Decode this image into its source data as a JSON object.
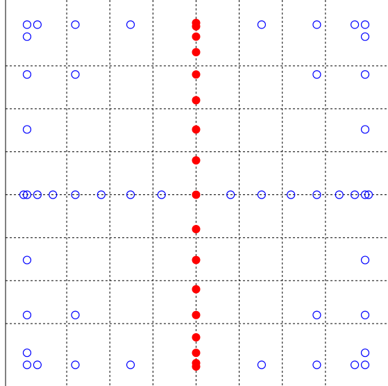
{
  "chart_data": {
    "type": "scatter",
    "title": "",
    "xlabel": "",
    "ylabel": "",
    "xlim": [
      -1,
      1
    ],
    "ylim": [
      -1,
      1
    ],
    "grid": true,
    "grid_style": "dashed",
    "x_gridlines": [
      -0.75,
      -0.5,
      -0.25,
      0,
      0.25,
      0.5,
      0.75
    ],
    "y_gridlines": [
      -0.75,
      -0.5,
      -0.25,
      0,
      0.25,
      0.5,
      0.75
    ],
    "series": [
      {
        "marker": "open-circle",
        "color": "#0000ff",
        "points": [
          [
            -0.98,
            0.99
          ],
          [
            -0.92,
            0.99
          ],
          [
            -0.7,
            0.99
          ],
          [
            -0.38,
            0.99
          ],
          [
            0.38,
            0.99
          ],
          [
            0.7,
            0.99
          ],
          [
            0.92,
            0.99
          ],
          [
            0.98,
            0.99
          ],
          [
            -0.98,
            0.92
          ],
          [
            0.98,
            0.92
          ],
          [
            -0.98,
            0.7
          ],
          [
            -0.7,
            0.7
          ],
          [
            0.7,
            0.7
          ],
          [
            0.98,
            0.7
          ],
          [
            -0.98,
            0.38
          ],
          [
            0.98,
            0.38
          ],
          [
            -1.0,
            0.0
          ],
          [
            -0.98,
            0.0
          ],
          [
            -0.92,
            0.0
          ],
          [
            -0.83,
            0.0
          ],
          [
            -0.7,
            0.0
          ],
          [
            -0.55,
            0.0
          ],
          [
            -0.38,
            0.0
          ],
          [
            -0.2,
            0.0
          ],
          [
            0.2,
            0.0
          ],
          [
            0.38,
            0.0
          ],
          [
            0.55,
            0.0
          ],
          [
            0.7,
            0.0
          ],
          [
            0.83,
            0.0
          ],
          [
            0.92,
            0.0
          ],
          [
            0.98,
            0.0
          ],
          [
            1.0,
            0.0
          ],
          [
            -0.98,
            -0.38
          ],
          [
            0.98,
            -0.38
          ],
          [
            -0.98,
            -0.7
          ],
          [
            -0.7,
            -0.7
          ],
          [
            0.7,
            -0.7
          ],
          [
            0.98,
            -0.7
          ],
          [
            -0.98,
            -0.92
          ],
          [
            0.98,
            -0.92
          ],
          [
            -0.98,
            -0.99
          ],
          [
            -0.92,
            -0.99
          ],
          [
            -0.7,
            -0.99
          ],
          [
            -0.38,
            -0.99
          ],
          [
            0.38,
            -0.99
          ],
          [
            0.7,
            -0.99
          ],
          [
            0.92,
            -0.99
          ],
          [
            0.98,
            -0.99
          ]
        ]
      },
      {
        "marker": "filled-circle",
        "color": "#ff0000",
        "points": [
          [
            0,
            1.0
          ],
          [
            0,
            0.98
          ],
          [
            0,
            0.92
          ],
          [
            0,
            0.83
          ],
          [
            0,
            0.7
          ],
          [
            0,
            0.55
          ],
          [
            0,
            0.38
          ],
          [
            0,
            0.2
          ],
          [
            0,
            0.0
          ],
          [
            0,
            -0.2
          ],
          [
            0,
            -0.38
          ],
          [
            0,
            -0.55
          ],
          [
            0,
            -0.7
          ],
          [
            0,
            -0.83
          ],
          [
            0,
            -0.92
          ],
          [
            0,
            -0.98
          ],
          [
            0,
            -1.0
          ]
        ]
      }
    ]
  }
}
